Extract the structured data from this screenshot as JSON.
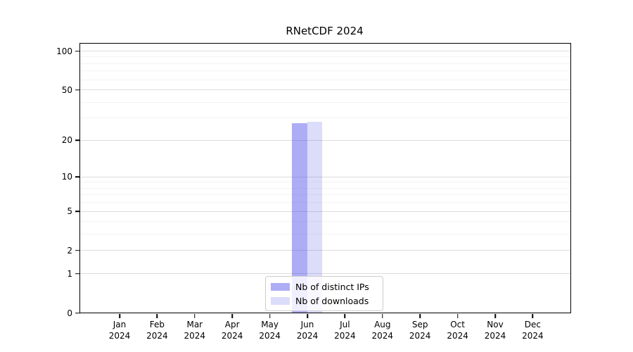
{
  "chart_data": {
    "type": "bar",
    "title": "RNetCDF 2024",
    "x_axis": {
      "months": [
        "Jan",
        "Feb",
        "Mar",
        "Apr",
        "May",
        "Jun",
        "Jul",
        "Aug",
        "Sep",
        "Oct",
        "Nov",
        "Dec"
      ],
      "year": "2024"
    },
    "y_axis": {
      "scale": "log1p",
      "ylim": [
        0,
        100
      ],
      "major_ticks": [
        0,
        1,
        2,
        5,
        10,
        20,
        50,
        100
      ],
      "minor_gridlines": [
        3,
        4,
        6,
        7,
        8,
        9,
        30,
        40,
        60,
        70,
        80,
        90
      ]
    },
    "series": [
      {
        "name": "Nb of distinct IPs",
        "color": "rgba(80,80,235,0.47)",
        "values": [
          0,
          0,
          0,
          0,
          0,
          27,
          0,
          0,
          0,
          0,
          0,
          0
        ]
      },
      {
        "name": "Nb of downloads",
        "color": "rgba(80,80,235,0.20)",
        "values": [
          0,
          0,
          0,
          0,
          0,
          28,
          0,
          0,
          0,
          0,
          0,
          0
        ]
      }
    ],
    "legend": {
      "position": "bottom-center"
    },
    "grid": true,
    "colors": {
      "major_gridline": "#dcdcdc",
      "minor_gridline": "#f3f3f3",
      "spine": "#000000",
      "background": "#ffffff",
      "text": "#000000"
    }
  }
}
